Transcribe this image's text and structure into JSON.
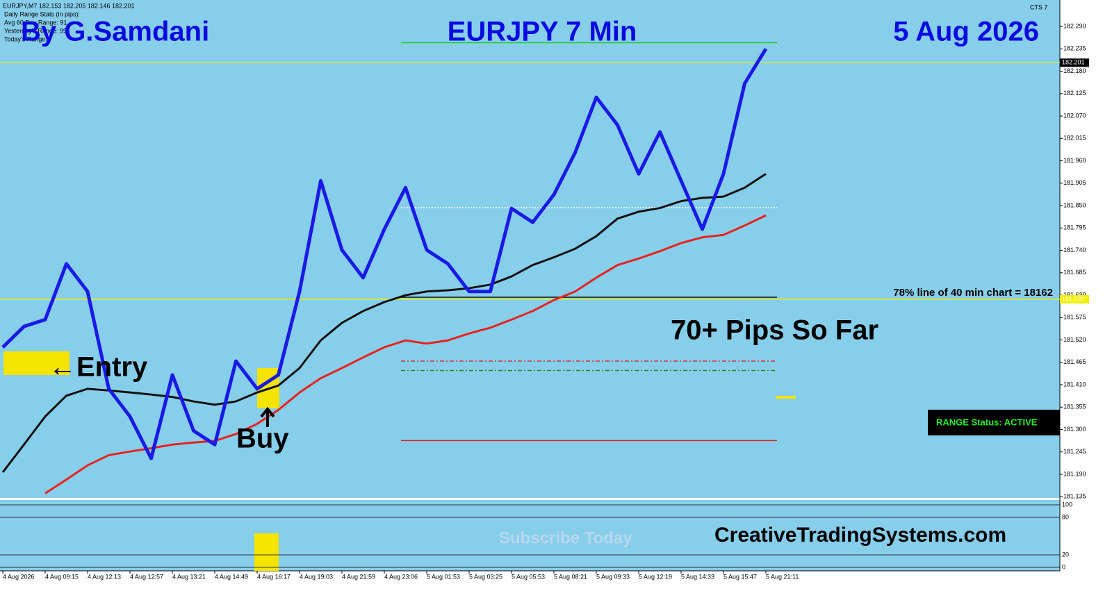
{
  "chart_data": {
    "type": "line",
    "header": [
      "EURJPY,M7  182.153 182.205 182.146 182.201",
      "Daily Range Stats (in pips):",
      "Avg 60 Day Range: 91",
      "Yesterday's Range: 99",
      "Today's Range:"
    ],
    "indicator_name": "CTS 7",
    "title_left": "By G.Samdani",
    "title": "EURJPY 7 Min",
    "title_right": "5 Aug 2026",
    "annotations": {
      "entry": "←Entry",
      "buy": "Buy",
      "pips": "70+ Pips So Far",
      "line78": "78% line of 40 min chart = 18162",
      "status": "RANGE Status: ACTIVE",
      "site": "CreativeTradingSystems.com",
      "watermark": "Subscribe Today"
    },
    "categories": [
      "4 Aug 2026",
      null,
      "4 Aug 09:15",
      null,
      "4 Aug 12:13",
      null,
      "4 Aug 12:57",
      null,
      "4 Aug 13:21",
      null,
      "4 Aug 14:49",
      null,
      "4 Aug 16:17",
      null,
      "4 Aug 19:03",
      null,
      "4 Aug 21:59",
      null,
      "4 Aug 23:06",
      null,
      "5 Aug 01:53",
      null,
      "5 Aug 03:25",
      null,
      "5 Aug 05:53",
      null,
      "5 Aug 08:21",
      null,
      "5 Aug 09:33",
      null,
      "5 Aug 12:19",
      null,
      "5 Aug 14:33",
      null,
      "5 Aug 15:47",
      null,
      "5 Aug 21:11"
    ],
    "series": [
      {
        "color": "#e8221e",
        "width": 3,
        "values": [
          null,
          null,
          181.143,
          181.177,
          181.212,
          181.237,
          181.246,
          181.254,
          181.263,
          181.268,
          181.272,
          181.289,
          181.314,
          181.348,
          181.391,
          181.426,
          181.451,
          181.477,
          181.502,
          181.519,
          181.511,
          181.519,
          181.536,
          181.55,
          181.57,
          181.591,
          181.618,
          181.639,
          181.673,
          181.704,
          181.72,
          181.738,
          181.758,
          181.772,
          181.778,
          181.801,
          181.826
        ]
      },
      {
        "color": "#111111",
        "width": 3,
        "values": [
          181.195,
          181.263,
          181.332,
          181.383,
          181.4,
          181.396,
          181.391,
          181.386,
          181.38,
          181.369,
          181.361,
          181.369,
          181.391,
          181.408,
          181.451,
          181.519,
          181.562,
          181.591,
          181.613,
          181.63,
          181.639,
          181.642,
          181.647,
          181.656,
          181.676,
          181.704,
          181.723,
          181.744,
          181.775,
          181.818,
          181.835,
          181.844,
          181.861,
          181.869,
          181.872,
          181.894,
          181.928
        ]
      },
      {
        "color": "#1a1ae6",
        "width": 5,
        "values": [
          181.502,
          181.553,
          181.57,
          181.707,
          181.639,
          181.4,
          181.332,
          181.229,
          181.434,
          181.297,
          181.263,
          181.468,
          181.4,
          181.434,
          181.639,
          181.911,
          181.741,
          181.673,
          181.792,
          181.894,
          181.741,
          181.707,
          181.639,
          181.639,
          181.843,
          181.809,
          181.877,
          181.98,
          182.116,
          182.048,
          181.928,
          182.031,
          181.911,
          181.792,
          181.928,
          182.15,
          182.235
        ]
      }
    ],
    "levels": [
      {
        "value": 182.25,
        "color": "#22cc22",
        "dash": ""
      },
      {
        "value": 181.845,
        "color": "#ffffff",
        "dash": "2,2"
      },
      {
        "value": 181.625,
        "color": "#111111",
        "dash": ""
      },
      {
        "value": 181.468,
        "color": "#cc3333",
        "dash": "6,3,2,3"
      },
      {
        "value": 181.445,
        "color": "#228822",
        "dash": "6,3,2,3"
      },
      {
        "value": 181.273,
        "color": "#dd2222",
        "dash": ""
      }
    ],
    "current_price": 182.201,
    "line78_price": {
      "value": 181.62,
      "label": "181.620"
    },
    "ylim": [
      181.132,
      182.355
    ],
    "yticks": [
      {
        "value": 182.29,
        "label": "182.290"
      },
      {
        "value": 182.235,
        "label": "182.235"
      },
      {
        "value": 182.18,
        "label": "182.180"
      },
      {
        "value": 182.125,
        "label": "182.125"
      },
      {
        "value": 182.07,
        "label": "182.070"
      },
      {
        "value": 182.015,
        "label": "182.015"
      },
      {
        "value": 181.96,
        "label": "181.960"
      },
      {
        "value": 181.905,
        "label": "181.905"
      },
      {
        "value": 181.85,
        "label": "181.850"
      },
      {
        "value": 181.795,
        "label": "181.795"
      },
      {
        "value": 181.74,
        "label": "181.740"
      },
      {
        "value": 181.685,
        "label": "181.685"
      },
      {
        "value": 181.63,
        "label": "181.630"
      },
      {
        "value": 181.575,
        "label": "181.575"
      },
      {
        "value": 181.52,
        "label": "181.520"
      },
      {
        "value": 181.465,
        "label": "181.465"
      },
      {
        "value": 181.41,
        "label": "181.410"
      },
      {
        "value": 181.355,
        "label": "181.355"
      },
      {
        "value": 181.3,
        "label": "181.300"
      },
      {
        "value": 181.245,
        "label": "181.245"
      },
      {
        "value": 181.19,
        "label": "181.190"
      },
      {
        "value": 181.135,
        "label": "181.135"
      }
    ],
    "oscillator": {
      "ylim": [
        -5.6,
        107.8
      ],
      "yticks": [
        100,
        80,
        20,
        0
      ]
    }
  }
}
